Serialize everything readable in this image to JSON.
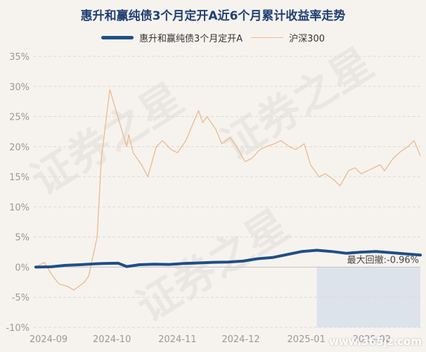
{
  "chart_data": {
    "type": "line",
    "title": "惠升和赢纯债3个月定开A近6个月累计收益率走势",
    "ylim": [
      -10,
      35
    ],
    "yticks": [
      35,
      30,
      25,
      20,
      15,
      10,
      5,
      0,
      -5,
      -10
    ],
    "ytick_labels": [
      "35%",
      "30%",
      "25%",
      "20%",
      "15%",
      "10%",
      "5%",
      "0%",
      "-5%",
      "-10%"
    ],
    "x_range": [
      "2024-08-25",
      "2025-02-24"
    ],
    "xticks": [
      "2024-09-01",
      "2024-10-01",
      "2024-11-01",
      "2024-12-01",
      "2025-01-01",
      "2025-02-01"
    ],
    "xtick_labels": [
      "2024-09",
      "2024-10",
      "2024-11",
      "2024-12",
      "2025-01",
      "2025-02"
    ],
    "legend_position": "top",
    "grid": "horizontal-dashed",
    "highlight": {
      "start": "2025-01-06",
      "end": "2025-02-24",
      "color": "#dde3ea"
    },
    "annotation": {
      "label": "最大回撤",
      "value": "-0.96%"
    },
    "series": [
      {
        "name": "惠升和赢纯债3个月定开A",
        "color": "#1f4e87",
        "x": [
          "2024-08-26",
          "2024-09-02",
          "2024-09-09",
          "2024-09-16",
          "2024-09-23",
          "2024-09-27",
          "2024-10-04",
          "2024-10-08",
          "2024-10-14",
          "2024-10-21",
          "2024-10-28",
          "2024-11-04",
          "2024-11-11",
          "2024-11-18",
          "2024-11-25",
          "2024-12-02",
          "2024-12-09",
          "2024-12-16",
          "2024-12-23",
          "2024-12-30",
          "2025-01-06",
          "2025-01-13",
          "2025-01-20",
          "2025-01-27",
          "2025-02-03",
          "2025-02-10",
          "2025-02-17",
          "2025-02-24"
        ],
        "y": [
          0.0,
          0.05,
          0.3,
          0.4,
          0.55,
          0.6,
          0.65,
          0.1,
          0.4,
          0.5,
          0.45,
          0.6,
          0.7,
          0.8,
          0.85,
          1.0,
          1.4,
          1.6,
          2.1,
          2.6,
          2.8,
          2.6,
          2.3,
          2.5,
          2.6,
          2.4,
          2.2,
          2.0
        ]
      },
      {
        "name": "沪深300",
        "color": "#eeba88",
        "x": [
          "2024-08-26",
          "2024-08-30",
          "2024-09-03",
          "2024-09-06",
          "2024-09-10",
          "2024-09-13",
          "2024-09-18",
          "2024-09-20",
          "2024-09-24",
          "2024-09-26",
          "2024-09-30",
          "2024-10-08",
          "2024-10-09",
          "2024-10-11",
          "2024-10-15",
          "2024-10-18",
          "2024-10-22",
          "2024-10-25",
          "2024-10-29",
          "2024-11-01",
          "2024-11-05",
          "2024-11-08",
          "2024-11-11",
          "2024-11-13",
          "2024-11-15",
          "2024-11-19",
          "2024-11-22",
          "2024-11-26",
          "2024-11-29",
          "2024-12-03",
          "2024-12-06",
          "2024-12-10",
          "2024-12-13",
          "2024-12-17",
          "2024-12-20",
          "2024-12-24",
          "2024-12-27",
          "2024-12-31",
          "2025-01-03",
          "2025-01-07",
          "2025-01-10",
          "2025-01-14",
          "2025-01-17",
          "2025-01-21",
          "2025-01-24",
          "2025-01-27",
          "2025-02-05",
          "2025-02-07",
          "2025-02-11",
          "2025-02-14",
          "2025-02-18",
          "2025-02-21",
          "2025-02-24"
        ],
        "y": [
          0.0,
          0.8,
          -1.5,
          -2.8,
          -3.2,
          -3.8,
          -2.5,
          -1.5,
          5.0,
          18.0,
          29.5,
          20.0,
          22.0,
          19.0,
          17.0,
          15.0,
          20.0,
          21.0,
          19.5,
          19.0,
          21.0,
          23.5,
          26.0,
          24.0,
          25.0,
          23.0,
          20.5,
          21.5,
          20.0,
          17.5,
          18.0,
          19.5,
          20.0,
          20.5,
          21.0,
          20.0,
          19.5,
          20.5,
          17.0,
          15.0,
          15.5,
          14.5,
          13.5,
          16.0,
          16.5,
          15.5,
          17.0,
          16.0,
          18.0,
          19.0,
          20.0,
          21.0,
          18.5
        ]
      }
    ]
  },
  "watermark": "证券之星",
  "site_mark": "www.365jz.com"
}
